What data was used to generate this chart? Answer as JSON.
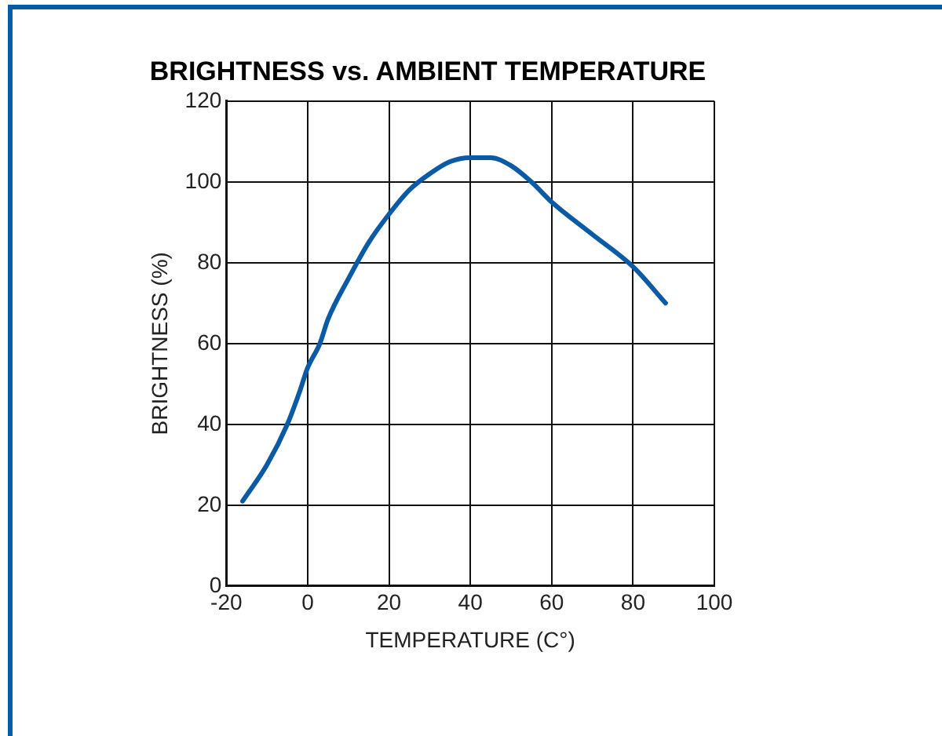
{
  "chart_data": {
    "type": "line",
    "title": "BRIGHTNESS vs. AMBIENT TEMPERATURE",
    "xlabel": "TEMPERATURE (C°)",
    "ylabel": "BRIGHTNESS (%)",
    "x": [
      -16,
      -10,
      -5,
      -2,
      0,
      3,
      5,
      10,
      15,
      20,
      25,
      30,
      35,
      40,
      45,
      50,
      55,
      60,
      70,
      80,
      88
    ],
    "series": [
      {
        "color": "#0b5aa6",
        "values": [
          21,
          30,
          40,
          48,
          54,
          60,
          66,
          76,
          85,
          92,
          98,
          102,
          105,
          106,
          106,
          104,
          100,
          95,
          87,
          79,
          70
        ]
      }
    ],
    "xlim": [
      -20,
      100
    ],
    "xticks": [
      -20,
      0,
      20,
      40,
      60,
      80,
      100
    ],
    "ylim": [
      0,
      120
    ],
    "yticks": [
      0,
      20,
      40,
      60,
      80,
      100,
      120
    ],
    "grid": true,
    "legend": false,
    "marker": "none",
    "line_style": "solid"
  }
}
